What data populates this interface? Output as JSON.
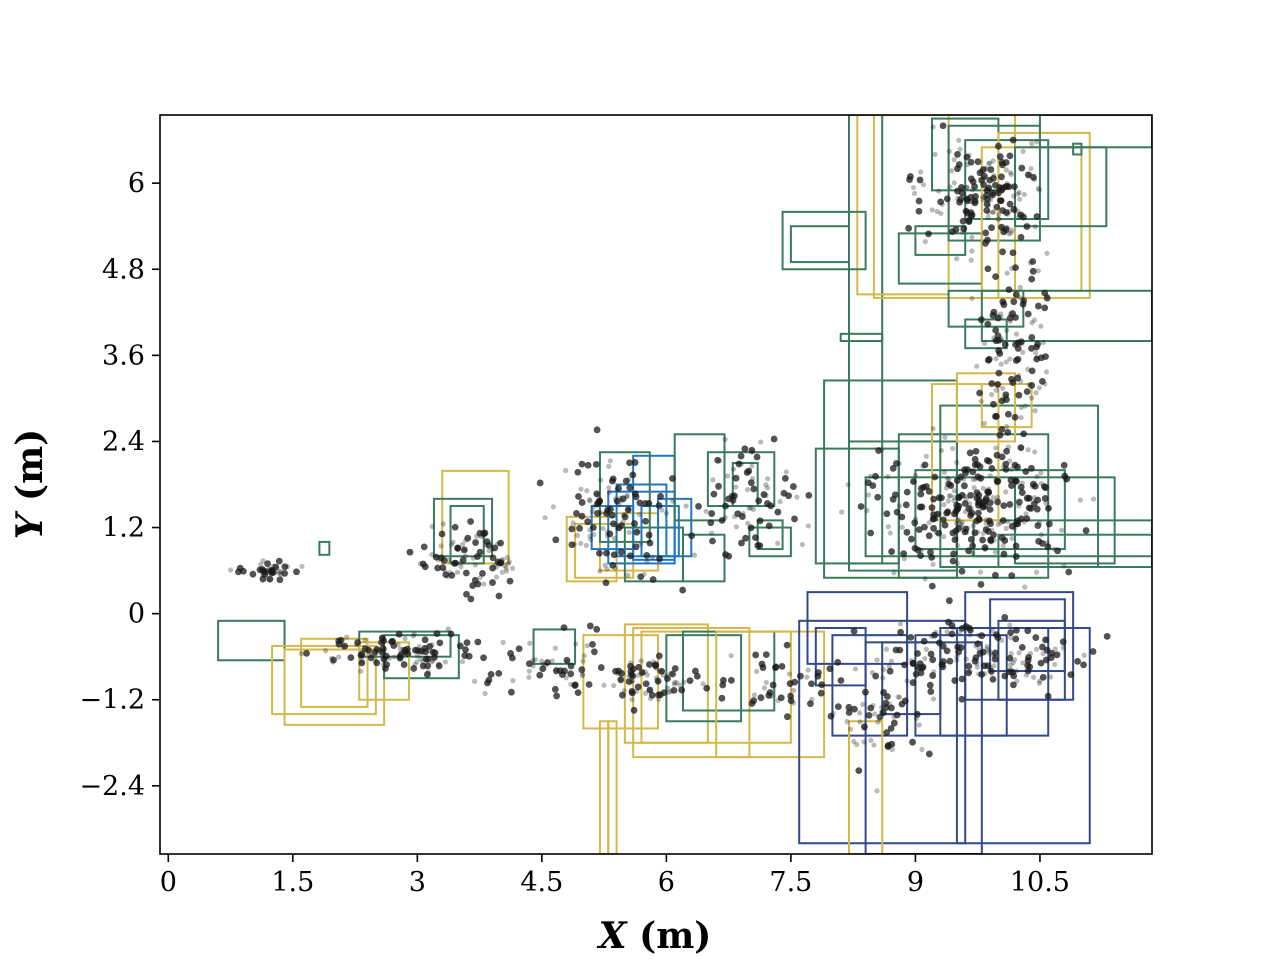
{
  "chart_data": {
    "type": "scatter",
    "title": "",
    "xlabel": {
      "symbol": "X",
      "unit": "(m)"
    },
    "ylabel": {
      "symbol": "Y",
      "unit": "(m)"
    },
    "xlim": [
      -0.1,
      11.85
    ],
    "ylim": [
      -3.35,
      6.95
    ],
    "xticks": [
      {
        "value": 0,
        "label": "0"
      },
      {
        "value": 1.5,
        "label": "1.5"
      },
      {
        "value": 3,
        "label": "3"
      },
      {
        "value": 4.5,
        "label": "4.5"
      },
      {
        "value": 6,
        "label": "6"
      },
      {
        "value": 7.5,
        "label": "7.5"
      },
      {
        "value": 9,
        "label": "9"
      },
      {
        "value": 10.5,
        "label": "10.5"
      }
    ],
    "yticks": [
      {
        "value": 6,
        "label": "6"
      },
      {
        "value": 4.8,
        "label": "4.8"
      },
      {
        "value": 3.6,
        "label": "3.6"
      },
      {
        "value": 2.4,
        "label": "2.4"
      },
      {
        "value": 1.2,
        "label": "1.2"
      },
      {
        "value": 0,
        "label": "0"
      },
      {
        "value": -1.2,
        "label": "−1.2"
      },
      {
        "value": -2.4,
        "label": "−2.4"
      }
    ],
    "grid": false,
    "legend": "none",
    "colors": {
      "points": "#1a1a1a",
      "green_boxes": "#3a7b5e",
      "yellow_boxes": "#d4b94a",
      "blue_boxes": "#1f77c2",
      "navy_boxes": "#34498a"
    },
    "point_clusters": [
      {
        "cx": 1.2,
        "cy": 0.6,
        "sx": 0.25,
        "sy": 0.08,
        "n": 40
      },
      {
        "cx": 2.8,
        "cy": -0.55,
        "sx": 0.6,
        "sy": 0.2,
        "n": 110
      },
      {
        "cx": 3.6,
        "cy": 0.75,
        "sx": 0.4,
        "sy": 0.35,
        "n": 90
      },
      {
        "cx": 4.6,
        "cy": -0.7,
        "sx": 0.6,
        "sy": 0.3,
        "n": 60
      },
      {
        "cx": 5.4,
        "cy": 1.4,
        "sx": 0.5,
        "sy": 0.6,
        "n": 130
      },
      {
        "cx": 5.8,
        "cy": -0.95,
        "sx": 0.35,
        "sy": 0.25,
        "n": 70
      },
      {
        "cx": 7.0,
        "cy": 1.7,
        "sx": 0.4,
        "sy": 0.6,
        "n": 80
      },
      {
        "cx": 7.2,
        "cy": -1.0,
        "sx": 0.6,
        "sy": 0.3,
        "n": 50
      },
      {
        "cx": 9.7,
        "cy": 1.5,
        "sx": 0.8,
        "sy": 0.6,
        "n": 320
      },
      {
        "cx": 9.8,
        "cy": 5.9,
        "sx": 0.5,
        "sy": 0.5,
        "n": 180
      },
      {
        "cx": 10.2,
        "cy": 3.8,
        "sx": 0.3,
        "sy": 1.1,
        "n": 140
      },
      {
        "cx": 9.8,
        "cy": -0.6,
        "sx": 0.9,
        "sy": 0.35,
        "n": 160
      },
      {
        "cx": 8.6,
        "cy": -1.4,
        "sx": 0.4,
        "sy": 0.5,
        "n": 60
      }
    ],
    "boxes": [
      {
        "x0": 0.6,
        "y0": -0.65,
        "x1": 1.4,
        "y1": -0.1,
        "color": "green"
      },
      {
        "x0": 1.82,
        "y0": 0.82,
        "x1": 1.94,
        "y1": 1.0,
        "color": "green"
      },
      {
        "x0": 1.25,
        "y0": -1.4,
        "x1": 2.5,
        "y1": -0.45,
        "color": "yellow"
      },
      {
        "x0": 1.4,
        "y0": -1.55,
        "x1": 2.6,
        "y1": -0.5,
        "color": "yellow"
      },
      {
        "x0": 1.6,
        "y0": -1.3,
        "x1": 2.4,
        "y1": -0.35,
        "color": "yellow"
      },
      {
        "x0": 2.3,
        "y0": -0.6,
        "x1": 3.4,
        "y1": -0.25,
        "color": "green"
      },
      {
        "x0": 2.6,
        "y0": -0.9,
        "x1": 3.5,
        "y1": -0.3,
        "color": "green"
      },
      {
        "x0": 2.3,
        "y0": -1.2,
        "x1": 2.9,
        "y1": -0.4,
        "color": "yellow"
      },
      {
        "x0": 3.3,
        "y0": 0.7,
        "x1": 4.1,
        "y1": 1.99,
        "color": "yellow"
      },
      {
        "x0": 3.2,
        "y0": 0.8,
        "x1": 3.9,
        "y1": 1.6,
        "color": "green"
      },
      {
        "x0": 3.4,
        "y0": 0.7,
        "x1": 3.8,
        "y1": 1.5,
        "color": "green"
      },
      {
        "x0": 4.4,
        "y0": -0.7,
        "x1": 4.9,
        "y1": -0.22,
        "color": "green"
      },
      {
        "x0": 4.8,
        "y0": 0.45,
        "x1": 5.4,
        "y1": 1.35,
        "color": "yellow"
      },
      {
        "x0": 4.9,
        "y0": 0.5,
        "x1": 5.6,
        "y1": 1.25,
        "color": "yellow"
      },
      {
        "x0": 5.2,
        "y0": 0.6,
        "x1": 5.9,
        "y1": 1.4,
        "color": "yellow"
      },
      {
        "x0": 5.5,
        "y0": 0.45,
        "x1": 6.2,
        "y1": 1.2,
        "color": "green"
      },
      {
        "x0": 5.1,
        "y0": 0.9,
        "x1": 5.6,
        "y1": 1.5,
        "color": "blue"
      },
      {
        "x0": 5.3,
        "y0": 0.7,
        "x1": 6.1,
        "y1": 1.7,
        "color": "blue"
      },
      {
        "x0": 5.4,
        "y0": 0.8,
        "x1": 6.0,
        "y1": 1.8,
        "color": "blue"
      },
      {
        "x0": 5.6,
        "y0": 0.75,
        "x1": 6.1,
        "y1": 2.2,
        "color": "blue"
      },
      {
        "x0": 5.7,
        "y0": 0.8,
        "x1": 6.15,
        "y1": 1.5,
        "color": "blue"
      },
      {
        "x0": 5.9,
        "y0": 0.8,
        "x1": 6.3,
        "y1": 1.6,
        "color": "blue"
      },
      {
        "x0": 5.2,
        "y0": 1.0,
        "x1": 5.8,
        "y1": 2.25,
        "color": "green"
      },
      {
        "x0": 6.2,
        "y0": 0.45,
        "x1": 6.7,
        "y1": 1.1,
        "color": "green"
      },
      {
        "x0": 6.1,
        "y0": 1.3,
        "x1": 6.7,
        "y1": 2.5,
        "color": "green"
      },
      {
        "x0": 6.5,
        "y0": 1.5,
        "x1": 7.3,
        "y1": 2.25,
        "color": "green"
      },
      {
        "x0": 6.8,
        "y0": 1.5,
        "x1": 7.1,
        "y1": 2.1,
        "color": "green"
      },
      {
        "x0": 7.0,
        "y0": 0.8,
        "x1": 7.5,
        "y1": 1.2,
        "color": "green"
      },
      {
        "x0": 7.1,
        "y0": 0.9,
        "x1": 7.4,
        "y1": 1.3,
        "color": "green"
      },
      {
        "x0": 5.0,
        "y0": -1.6,
        "x1": 5.9,
        "y1": -0.3,
        "color": "yellow"
      },
      {
        "x0": 5.2,
        "y0": -3.35,
        "x1": 5.3,
        "y1": -1.5,
        "color": "yellow"
      },
      {
        "x0": 5.3,
        "y0": -3.35,
        "x1": 5.4,
        "y1": -1.5,
        "color": "yellow"
      },
      {
        "x0": 5.5,
        "y0": -1.8,
        "x1": 6.5,
        "y1": -0.15,
        "color": "yellow"
      },
      {
        "x0": 5.6,
        "y0": -2.0,
        "x1": 7.0,
        "y1": -0.2,
        "color": "yellow"
      },
      {
        "x0": 5.7,
        "y0": -1.8,
        "x1": 7.5,
        "y1": -0.25,
        "color": "yellow"
      },
      {
        "x0": 6.0,
        "y0": -1.5,
        "x1": 6.9,
        "y1": -0.3,
        "color": "green"
      },
      {
        "x0": 6.2,
        "y0": -1.35,
        "x1": 7.3,
        "y1": -0.25,
        "color": "green"
      },
      {
        "x0": 6.6,
        "y0": -2.0,
        "x1": 7.9,
        "y1": -0.25,
        "color": "yellow"
      },
      {
        "x0": 7.6,
        "y0": -3.2,
        "x1": 9.6,
        "y1": -0.1,
        "color": "navy"
      },
      {
        "x0": 7.7,
        "y0": -0.7,
        "x1": 8.9,
        "y1": 0.3,
        "color": "navy"
      },
      {
        "x0": 7.8,
        "y0": -1.0,
        "x1": 8.4,
        "y1": -0.2,
        "color": "navy"
      },
      {
        "x0": 8.0,
        "y0": -1.7,
        "x1": 8.9,
        "y1": -0.3,
        "color": "navy"
      },
      {
        "x0": 8.2,
        "y0": -3.35,
        "x1": 8.6,
        "y1": -1.5,
        "color": "yellow"
      },
      {
        "x0": 8.4,
        "y0": -3.35,
        "x1": 9.8,
        "y1": -0.4,
        "color": "navy"
      },
      {
        "x0": 8.6,
        "y0": -1.4,
        "x1": 9.3,
        "y1": -0.4,
        "color": "navy"
      },
      {
        "x0": 9.0,
        "y0": -1.7,
        "x1": 10.1,
        "y1": -0.3,
        "color": "navy"
      },
      {
        "x0": 9.3,
        "y0": -1.7,
        "x1": 10.6,
        "y1": -0.2,
        "color": "navy"
      },
      {
        "x0": 9.5,
        "y0": -3.2,
        "x1": 11.1,
        "y1": -0.2,
        "color": "navy"
      },
      {
        "x0": 9.6,
        "y0": -1.2,
        "x1": 10.9,
        "y1": 0.3,
        "color": "navy"
      },
      {
        "x0": 9.9,
        "y0": -0.8,
        "x1": 10.8,
        "y1": 0.2,
        "color": "navy"
      },
      {
        "x0": 10.0,
        "y0": -1.2,
        "x1": 10.8,
        "y1": -0.1,
        "color": "navy"
      },
      {
        "x0": 7.8,
        "y0": 0.7,
        "x1": 8.8,
        "y1": 2.3,
        "color": "green"
      },
      {
        "x0": 7.9,
        "y0": 0.5,
        "x1": 9.5,
        "y1": 3.25,
        "color": "green"
      },
      {
        "x0": 8.2,
        "y0": 0.6,
        "x1": 9.5,
        "y1": 2.4,
        "color": "green"
      },
      {
        "x0": 8.4,
        "y0": 0.8,
        "x1": 10.2,
        "y1": 1.9,
        "color": "green"
      },
      {
        "x0": 8.8,
        "y0": 0.5,
        "x1": 10.6,
        "y1": 2.5,
        "color": "green"
      },
      {
        "x0": 9.0,
        "y0": 0.9,
        "x1": 10.8,
        "y1": 2.0,
        "color": "green"
      },
      {
        "x0": 9.3,
        "y0": 0.65,
        "x1": 11.2,
        "y1": 2.9,
        "color": "green"
      },
      {
        "x0": 9.7,
        "y0": 0.8,
        "x1": 11.85,
        "y1": 1.3,
        "color": "green"
      },
      {
        "x0": 10.0,
        "y0": 0.65,
        "x1": 11.85,
        "y1": 1.1,
        "color": "green"
      },
      {
        "x0": 10.2,
        "y0": 0.7,
        "x1": 11.4,
        "y1": 1.9,
        "color": "green"
      },
      {
        "x0": 9.2,
        "y0": 1.3,
        "x1": 10.0,
        "y1": 3.2,
        "color": "yellow"
      },
      {
        "x0": 9.5,
        "y0": 2.4,
        "x1": 10.2,
        "y1": 3.35,
        "color": "yellow"
      },
      {
        "x0": 9.8,
        "y0": 2.6,
        "x1": 10.4,
        "y1": 3.2,
        "color": "yellow"
      },
      {
        "x0": 8.2,
        "y0": 0.7,
        "x1": 8.6,
        "y1": 6.95,
        "color": "green"
      },
      {
        "x0": 8.3,
        "y0": 4.45,
        "x1": 9.4,
        "y1": 6.95,
        "color": "yellow"
      },
      {
        "x0": 8.5,
        "y0": 4.4,
        "x1": 10.2,
        "y1": 6.95,
        "color": "yellow"
      },
      {
        "x0": 7.4,
        "y0": 4.8,
        "x1": 8.4,
        "y1": 5.6,
        "color": "green"
      },
      {
        "x0": 7.5,
        "y0": 4.9,
        "x1": 8.2,
        "y1": 5.4,
        "color": "green"
      },
      {
        "x0": 8.1,
        "y0": 3.8,
        "x1": 8.6,
        "y1": 3.9,
        "color": "green"
      },
      {
        "x0": 8.8,
        "y0": 4.6,
        "x1": 9.8,
        "y1": 5.3,
        "color": "green"
      },
      {
        "x0": 9.0,
        "y0": 5.0,
        "x1": 9.6,
        "y1": 5.4,
        "color": "green"
      },
      {
        "x0": 9.2,
        "y0": 5.9,
        "x1": 10.0,
        "y1": 6.9,
        "color": "green"
      },
      {
        "x0": 9.4,
        "y0": 5.2,
        "x1": 10.5,
        "y1": 6.8,
        "color": "green"
      },
      {
        "x0": 9.6,
        "y0": 5.5,
        "x1": 10.6,
        "y1": 6.6,
        "color": "green"
      },
      {
        "x0": 9.8,
        "y0": 4.5,
        "x1": 11.0,
        "y1": 6.5,
        "color": "yellow"
      },
      {
        "x0": 10.0,
        "y0": 4.4,
        "x1": 11.1,
        "y1": 6.7,
        "color": "yellow"
      },
      {
        "x0": 10.2,
        "y0": 5.4,
        "x1": 11.3,
        "y1": 6.5,
        "color": "green"
      },
      {
        "x0": 10.5,
        "y0": 6.5,
        "x1": 11.85,
        "y1": 6.95,
        "color": "green"
      },
      {
        "x0": 10.9,
        "y0": 6.4,
        "x1": 11.0,
        "y1": 6.55,
        "color": "green"
      },
      {
        "x0": 9.4,
        "y0": 4.0,
        "x1": 10.3,
        "y1": 4.5,
        "color": "green"
      },
      {
        "x0": 9.8,
        "y0": 3.8,
        "x1": 11.85,
        "y1": 4.5,
        "color": "green"
      },
      {
        "x0": 9.6,
        "y0": 3.7,
        "x1": 10.1,
        "y1": 4.1,
        "color": "green"
      }
    ]
  }
}
